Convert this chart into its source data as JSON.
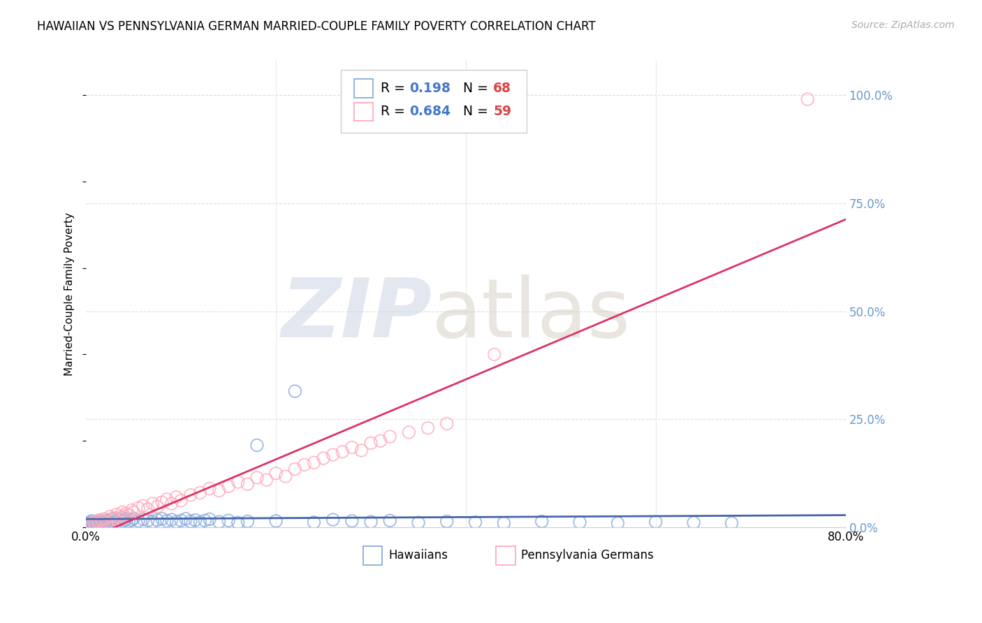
{
  "title": "HAWAIIAN VS PENNSYLVANIA GERMAN MARRIED-COUPLE FAMILY POVERTY CORRELATION CHART",
  "source": "Source: ZipAtlas.com",
  "ylabel": "Married-Couple Family Poverty",
  "xlim": [
    0.0,
    0.8
  ],
  "ylim": [
    0.0,
    1.08
  ],
  "yticks": [
    0.0,
    0.25,
    0.5,
    0.75,
    1.0
  ],
  "ytick_labels": [
    "0.0%",
    "25.0%",
    "50.0%",
    "75.0%",
    "100.0%"
  ],
  "xtick_labels": [
    "0.0%",
    "",
    "",
    "",
    "80.0%"
  ],
  "hawaiian_R": 0.198,
  "hawaiian_N": 68,
  "pagerman_R": 0.684,
  "pagerman_N": 59,
  "blue_color": "#88aadd",
  "pink_color": "#ffaabb",
  "blue_line_color": "#4466aa",
  "pink_line_color": "#dd3366",
  "legend_R_color": "#4477cc",
  "legend_N_color": "#dd4444",
  "right_tick_color": "#6699cc",
  "grid_color": "#dddddd",
  "spine_color": "#cccccc"
}
